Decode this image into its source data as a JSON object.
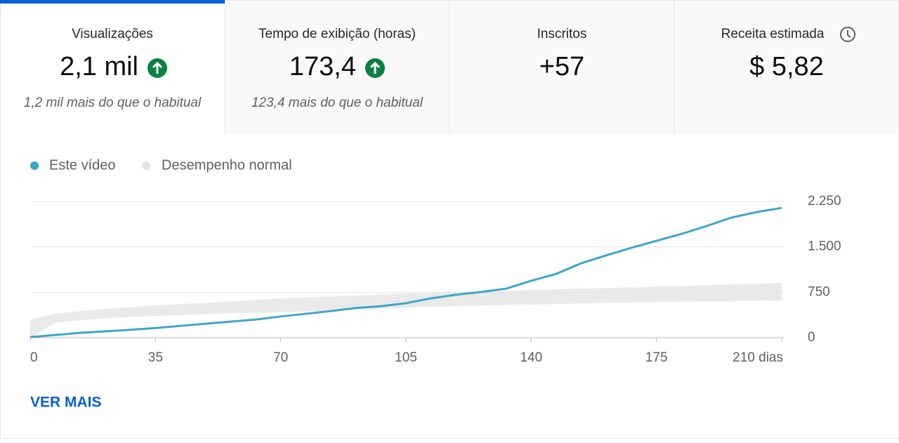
{
  "cards": [
    {
      "title": "Visualizações",
      "value": "2,1 mil",
      "note": "1,2 mil mais do que o habitual"
    },
    {
      "title": "Tempo de exibição (horas)",
      "value": "173,4",
      "note": "123,4 mais do que o habitual"
    },
    {
      "title": "Inscritos",
      "value": "+57"
    },
    {
      "title": "Receita estimada",
      "value": "$ 5,82"
    }
  ],
  "chart_data": {
    "type": "line",
    "x": [
      0,
      7,
      14,
      21,
      28,
      35,
      42,
      49,
      56,
      63,
      70,
      77,
      84,
      91,
      98,
      105,
      112,
      119,
      126,
      133,
      140,
      147,
      154,
      161,
      168,
      175,
      182,
      189,
      196,
      203,
      210
    ],
    "series": [
      {
        "name": "Este vídeo",
        "color": "#3ea6c8",
        "values": [
          10,
          45,
          80,
          105,
          130,
          160,
          195,
          230,
          265,
          300,
          350,
          395,
          440,
          490,
          520,
          570,
          650,
          710,
          755,
          810,
          940,
          1055,
          1230,
          1360,
          1485,
          1600,
          1715,
          1845,
          1985,
          2075,
          2145
        ]
      },
      {
        "name": "Desempenho normal",
        "color": "#e3e3e3",
        "low": [
          0,
          245,
          290,
          320,
          345,
          360,
          375,
          390,
          400,
          410,
          420,
          435,
          450,
          465,
          480,
          500,
          510,
          520,
          530,
          540,
          545,
          555,
          565,
          575,
          580,
          590,
          595,
          600,
          605,
          610,
          615
        ],
        "high": [
          300,
          395,
          440,
          475,
          505,
          535,
          555,
          575,
          600,
          625,
          650,
          665,
          680,
          695,
          715,
          730,
          740,
          750,
          760,
          770,
          790,
          800,
          810,
          820,
          830,
          845,
          855,
          865,
          880,
          890,
          905
        ]
      }
    ],
    "xlim": [
      0,
      210
    ],
    "xticks": [
      0,
      35,
      70,
      105,
      140,
      175,
      {
        "value": 210,
        "label": "210 dias"
      }
    ],
    "ylim": [
      0,
      2250
    ],
    "yticks": [
      0,
      750,
      {
        "value": 1500,
        "label": "1.500"
      },
      {
        "value": 2250,
        "label": "2.250"
      }
    ],
    "grid": true
  },
  "more": "VER MAIS"
}
